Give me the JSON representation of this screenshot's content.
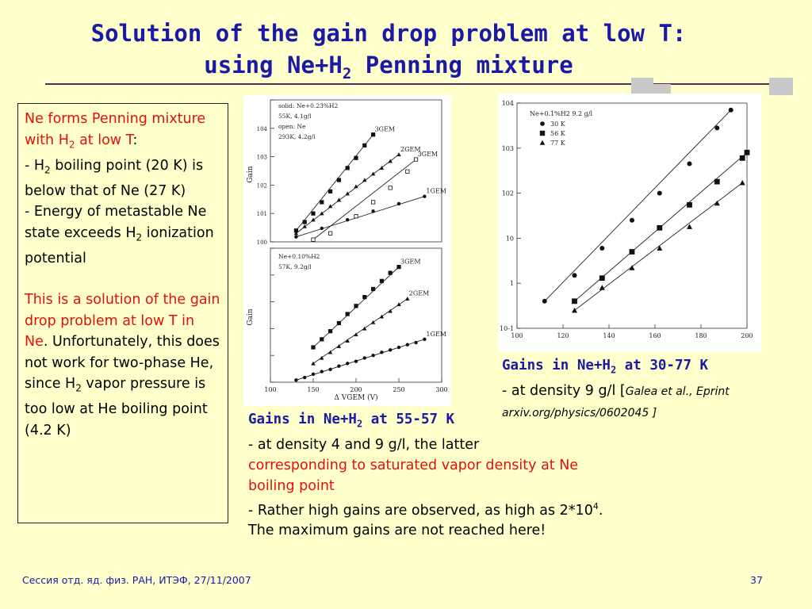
{
  "slide": {
    "title_line1": "Solution of the gain drop problem at low T:",
    "title_line2_pre": "using Ne+H",
    "title_line2_sub": "2",
    "title_line2_post": " Penning mixture"
  },
  "left_box": {
    "p1_a": "Ne forms Penning mixture with H",
    "p1_sub": "2",
    "p1_b": " at low T",
    "p1_colon": ":",
    "p2_a": "- H",
    "p2_sub": "2",
    "p2_b": " boiling point (20 K) is below that of Ne (27 K)",
    "p3_a": "- Energy of metastable Ne state exceeds H",
    "p3_sub": "2",
    "p3_b": " ionization potential",
    "p4_red": "This is a solution of the gain drop problem at low T in Ne",
    "p4_dot": ".",
    "p4_b": " Unfortunately, this does not work for two-phase He, since H",
    "p4_sub": "2",
    "p4_c": " vapor pressure is too low at He boiling point (4.2 K)"
  },
  "caption_a": {
    "head_pre": "Gains in Ne+H",
    "head_sub": "2",
    "head_post": " at 55-57 K",
    "l1": "- at density 4 and 9 g/l, the latter",
    "l2_red": "corresponding to saturated vapor density at Ne boiling point",
    "l3_a": "- Rather high gains are observed, as high as 2*10",
    "l3_sup": "4",
    "l3_b": ". The maximum gains are not reached here!"
  },
  "caption_b": {
    "head_pre": "Gains in Ne+H",
    "head_sub": "2",
    "head_post": " at 30-77 K",
    "l1_a": "- at density 9 g/l [",
    "l1_ref": "Galea et al., Eprint arxiv.org/physics/0602045 ]"
  },
  "footer": {
    "text": "Сессия отд. яд. физ. РАН, ИТЭФ, 27/11/2007",
    "page": "37"
  },
  "chart_data": [
    {
      "type": "scatter",
      "panel": "upper",
      "legend_text": [
        "solid: Ne+0.23%H2",
        "55K, 4.1g/l",
        "open: Ne",
        "293K, 4.2g/l"
      ],
      "ylabel": "Gain",
      "yscale": "log",
      "ylim": [
        1,
        100000
      ],
      "xlim": [
        100,
        300
      ],
      "yticks": [
        "10^0",
        "10^1",
        "10^2",
        "10^3",
        "10^4"
      ],
      "series": [
        {
          "name": "3GEM",
          "marker": "square-filled",
          "x": [
            130,
            140,
            150,
            160,
            170,
            180,
            190,
            200,
            210,
            220
          ],
          "y": [
            2.5,
            5,
            10,
            25,
            60,
            150,
            400,
            900,
            2500,
            6000
          ]
        },
        {
          "name": "2GEM",
          "marker": "triangle-filled",
          "x": [
            130,
            140,
            150,
            160,
            170,
            180,
            190,
            200,
            210,
            220,
            230,
            240,
            250
          ],
          "y": [
            2,
            3.5,
            6,
            10,
            18,
            30,
            50,
            90,
            150,
            250,
            400,
            700,
            1200
          ]
        },
        {
          "name": "1GEM",
          "marker": "circle-filled",
          "x": [
            130,
            160,
            190,
            220,
            250,
            280
          ],
          "y": [
            1.5,
            3,
            6,
            12,
            22,
            40
          ]
        },
        {
          "name": "3GEM",
          "marker": "square-open",
          "x": [
            150,
            170,
            200,
            220,
            240,
            260,
            270
          ],
          "y": [
            1.2,
            2,
            8,
            25,
            80,
            300,
            800
          ]
        }
      ]
    },
    {
      "type": "scatter",
      "panel": "lower",
      "legend_text": [
        "Ne+0.10%H2",
        "57K, 9.2g/l"
      ],
      "xlabel": "Δ VGEM (V)",
      "ylabel": "Gain",
      "yscale": "log",
      "ylim": [
        1,
        100000
      ],
      "xlim": [
        100,
        300
      ],
      "xticks": [
        100,
        150,
        200,
        250,
        300
      ],
      "series": [
        {
          "name": "3GEM",
          "marker": "square-filled",
          "x": [
            150,
            160,
            170,
            180,
            190,
            200,
            210,
            220,
            230,
            240,
            250
          ],
          "y": [
            20,
            40,
            80,
            160,
            350,
            700,
            1500,
            3000,
            6000,
            12000,
            20000
          ]
        },
        {
          "name": "2GEM",
          "marker": "triangle-filled",
          "x": [
            150,
            160,
            170,
            180,
            190,
            200,
            210,
            220,
            230,
            240,
            250,
            260
          ],
          "y": [
            5,
            8,
            13,
            22,
            35,
            60,
            100,
            170,
            280,
            450,
            800,
            1300
          ]
        },
        {
          "name": "1GEM",
          "marker": "circle-filled",
          "x": [
            130,
            140,
            150,
            160,
            170,
            180,
            190,
            200,
            210,
            220,
            230,
            240,
            250,
            260,
            270,
            280
          ],
          "y": [
            1.2,
            1.5,
            2,
            2.5,
            3,
            4,
            5,
            6,
            8,
            10,
            13,
            16,
            20,
            25,
            30,
            40
          ]
        }
      ]
    },
    {
      "type": "scatter",
      "legend_title": "Ne+0.1%H2 9.2 g/l",
      "yscale": "log",
      "ylim": [
        0.1,
        10000
      ],
      "xlim": [
        100,
        200
      ],
      "xticks": [
        100,
        120,
        140,
        160,
        180,
        200
      ],
      "yticks": [
        "10^-1",
        "1",
        "10",
        "10^2",
        "10^3",
        "10^4"
      ],
      "series": [
        {
          "name": "30 K",
          "marker": "circle-filled",
          "x": [
            112,
            125,
            137,
            150,
            162,
            175,
            187,
            193
          ],
          "y": [
            0.4,
            1.5,
            6,
            25,
            100,
            450,
            2800,
            7000
          ]
        },
        {
          "name": "56 K",
          "marker": "square-filled",
          "x": [
            125,
            137,
            150,
            162,
            175,
            187,
            198,
            200
          ],
          "y": [
            0.4,
            1.3,
            5,
            17,
            55,
            180,
            600,
            800
          ]
        },
        {
          "name": "77 K",
          "marker": "triangle-filled",
          "x": [
            125,
            137,
            150,
            162,
            175,
            187,
            198
          ],
          "y": [
            0.25,
            0.8,
            2.2,
            6,
            18,
            60,
            170
          ]
        }
      ]
    }
  ]
}
